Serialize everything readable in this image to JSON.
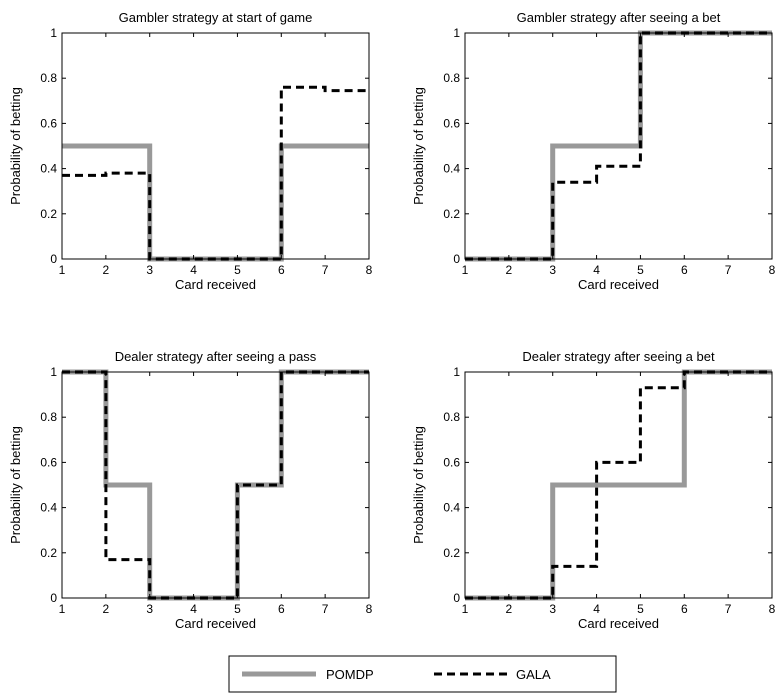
{
  "chart_data": [
    {
      "type": "line",
      "step": true,
      "title": "Gambler strategy at start of game",
      "xlabel": "Card received",
      "ylabel": "Probability of betting",
      "xlim": [
        1,
        8
      ],
      "ylim": [
        0,
        1
      ],
      "xticks": [
        "1",
        "2",
        "3",
        "4",
        "5",
        "6",
        "7",
        "8"
      ],
      "yticks": [
        "0",
        "0.2",
        "0.4",
        "0.6",
        "0.8",
        "1"
      ],
      "series": [
        {
          "name": "POMDP",
          "color": "#999999",
          "dash": "solid",
          "points": [
            [
              1,
              0.5
            ],
            [
              3,
              0.5
            ],
            [
              3,
              0
            ],
            [
              6,
              0
            ],
            [
              6,
              0.5
            ],
            [
              8,
              0.5
            ]
          ]
        },
        {
          "name": "GALA",
          "color": "#000000",
          "dash": "dashed",
          "points": [
            [
              1,
              0.37
            ],
            [
              2,
              0.37
            ],
            [
              2,
              0.38
            ],
            [
              3,
              0.38
            ],
            [
              3,
              0
            ],
            [
              6,
              0
            ],
            [
              6,
              0.76
            ],
            [
              7,
              0.76
            ],
            [
              7,
              0.745
            ],
            [
              8,
              0.745
            ]
          ]
        }
      ]
    },
    {
      "type": "line",
      "step": true,
      "title": "Gambler strategy after seeing a bet",
      "xlabel": "Card received",
      "ylabel": "Probability of betting",
      "xlim": [
        1,
        8
      ],
      "ylim": [
        0,
        1
      ],
      "xticks": [
        "1",
        "2",
        "3",
        "4",
        "5",
        "6",
        "7",
        "8"
      ],
      "yticks": [
        "0",
        "0.2",
        "0.4",
        "0.6",
        "0.8",
        "1"
      ],
      "series": [
        {
          "name": "POMDP",
          "color": "#999999",
          "dash": "solid",
          "points": [
            [
              1,
              0
            ],
            [
              3,
              0
            ],
            [
              3,
              0.5
            ],
            [
              5,
              0.5
            ],
            [
              5,
              1
            ],
            [
              8,
              1
            ]
          ]
        },
        {
          "name": "GALA",
          "color": "#000000",
          "dash": "dashed",
          "points": [
            [
              1,
              0
            ],
            [
              3,
              0
            ],
            [
              3,
              0.34
            ],
            [
              4,
              0.34
            ],
            [
              4,
              0.41
            ],
            [
              5,
              0.41
            ],
            [
              5,
              1
            ],
            [
              8,
              1
            ]
          ]
        }
      ]
    },
    {
      "type": "line",
      "step": true,
      "title": "Dealer strategy after seeing a pass",
      "xlabel": "Card received",
      "ylabel": "Probability of betting",
      "xlim": [
        1,
        8
      ],
      "ylim": [
        0,
        1
      ],
      "xticks": [
        "1",
        "2",
        "3",
        "4",
        "5",
        "6",
        "7",
        "8"
      ],
      "yticks": [
        "0",
        "0.2",
        "0.4",
        "0.6",
        "0.8",
        "1"
      ],
      "series": [
        {
          "name": "POMDP",
          "color": "#999999",
          "dash": "solid",
          "points": [
            [
              1,
              1
            ],
            [
              2,
              1
            ],
            [
              2,
              0.5
            ],
            [
              3,
              0.5
            ],
            [
              3,
              0
            ],
            [
              5,
              0
            ],
            [
              5,
              0.5
            ],
            [
              6,
              0.5
            ],
            [
              6,
              1
            ],
            [
              8,
              1
            ]
          ]
        },
        {
          "name": "GALA",
          "color": "#000000",
          "dash": "dashed",
          "points": [
            [
              1,
              1
            ],
            [
              2,
              1
            ],
            [
              2,
              0.17
            ],
            [
              3,
              0.17
            ],
            [
              3,
              0
            ],
            [
              5,
              0
            ],
            [
              5,
              0.5
            ],
            [
              6,
              0.5
            ],
            [
              6,
              1
            ],
            [
              8,
              1
            ]
          ]
        }
      ]
    },
    {
      "type": "line",
      "step": true,
      "title": "Dealer strategy after seeing a bet",
      "xlabel": "Card received",
      "ylabel": "Probability of betting",
      "xlim": [
        1,
        8
      ],
      "ylim": [
        0,
        1
      ],
      "xticks": [
        "1",
        "2",
        "3",
        "4",
        "5",
        "6",
        "7",
        "8"
      ],
      "yticks": [
        "0",
        "0.2",
        "0.4",
        "0.6",
        "0.8",
        "1"
      ],
      "series": [
        {
          "name": "POMDP",
          "color": "#999999",
          "dash": "solid",
          "points": [
            [
              1,
              0
            ],
            [
              3,
              0
            ],
            [
              3,
              0.5
            ],
            [
              6,
              0.5
            ],
            [
              6,
              1
            ],
            [
              8,
              1
            ]
          ]
        },
        {
          "name": "GALA",
          "color": "#000000",
          "dash": "dashed",
          "points": [
            [
              1,
              0
            ],
            [
              3,
              0
            ],
            [
              3,
              0.14
            ],
            [
              4,
              0.14
            ],
            [
              4,
              0.6
            ],
            [
              5,
              0.6
            ],
            [
              5,
              0.93
            ],
            [
              6,
              0.93
            ],
            [
              6,
              1
            ],
            [
              8,
              1
            ]
          ]
        }
      ]
    }
  ],
  "legend": {
    "placement": "bottom-center",
    "entries": [
      {
        "label": "POMDP",
        "color": "#999999",
        "dash": "solid"
      },
      {
        "label": "GALA",
        "color": "#000000",
        "dash": "dashed"
      }
    ]
  }
}
